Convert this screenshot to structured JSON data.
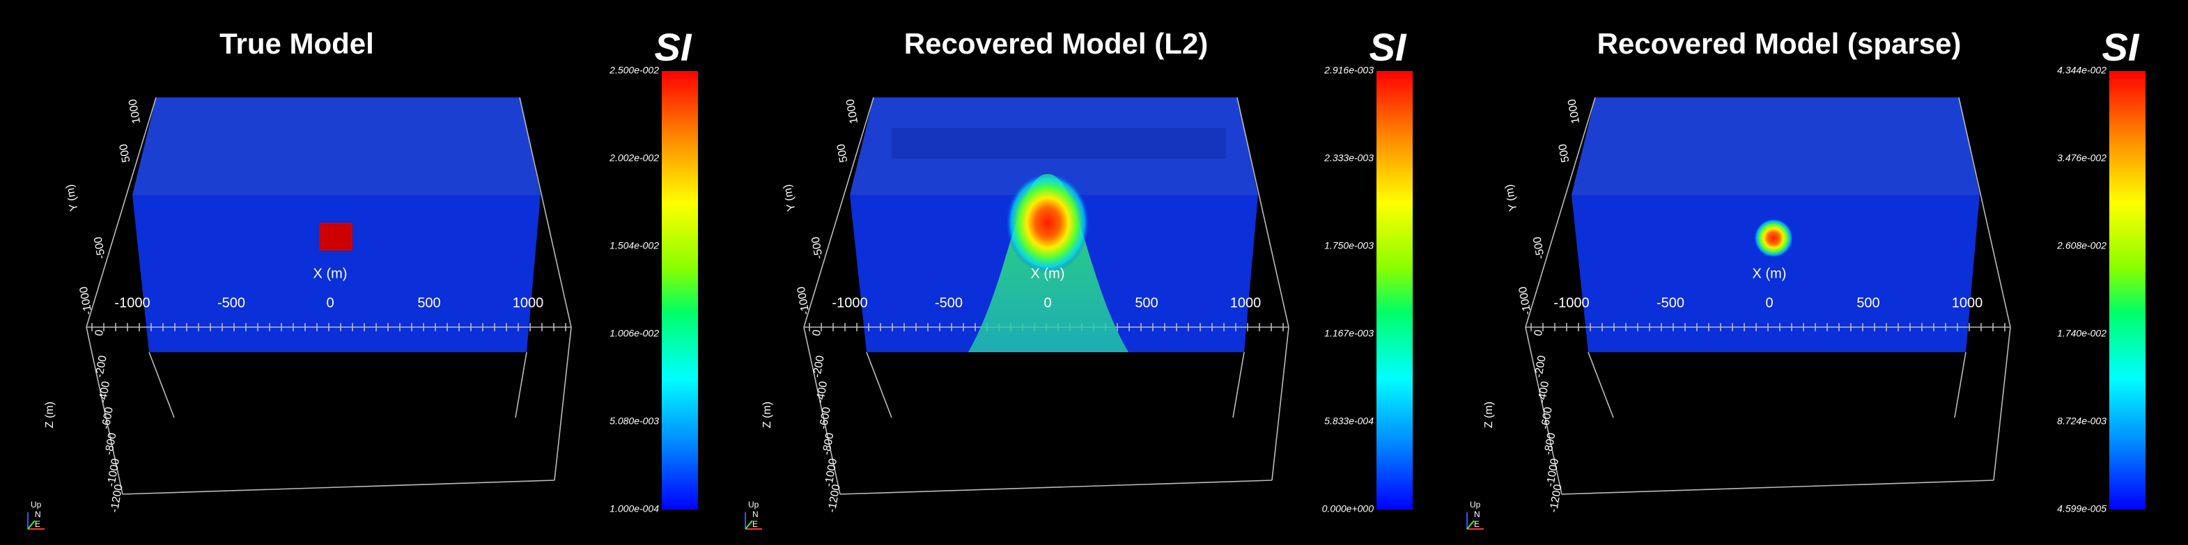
{
  "panels": [
    {
      "title": "True Model",
      "colorbar": {
        "label": "SI",
        "ticks": [
          "2.500e-002",
          "2.002e-002",
          "1.504e-002",
          "1.006e-002",
          "5.080e-003",
          "1.000e-004"
        ]
      },
      "x_axis": {
        "label": "X (m)",
        "ticks": [
          "-1000",
          "-500",
          "0",
          "500",
          "1000"
        ]
      },
      "y_axis": {
        "label": "Y (m)",
        "ticks": [
          "1000",
          "500",
          "-500",
          "-1000"
        ]
      },
      "z_axis": {
        "label": "Z (m)",
        "ticks": [
          "0",
          "-200",
          "-400",
          "-600",
          "-800",
          "-1000",
          "-1200"
        ]
      },
      "orientation": {
        "up": "Up",
        "north": "N",
        "east": "E"
      }
    },
    {
      "title": "Recovered Model (L2)",
      "colorbar": {
        "label": "SI",
        "ticks": [
          "2.916e-003",
          "2.333e-003",
          "1.750e-003",
          "1.167e-003",
          "5.833e-004",
          "0.000e+000"
        ]
      },
      "x_axis": {
        "label": "X (m)",
        "ticks": [
          "-1000",
          "-500",
          "0",
          "500",
          "1000"
        ]
      },
      "y_axis": {
        "label": "Y (m)",
        "ticks": [
          "1000",
          "500",
          "-500",
          "-1000"
        ]
      },
      "z_axis": {
        "label": "Z (m)",
        "ticks": [
          "0",
          "-200",
          "-400",
          "-600",
          "-800",
          "-1000",
          "-1200"
        ]
      },
      "orientation": {
        "up": "Up",
        "north": "N",
        "east": "E"
      }
    },
    {
      "title": "Recovered Model (sparse)",
      "colorbar": {
        "label": "SI",
        "ticks": [
          "4.344e-002",
          "3.476e-002",
          "2.608e-002",
          "1.740e-002",
          "8.724e-003",
          "4.599e-005"
        ]
      },
      "x_axis": {
        "label": "X (m)",
        "ticks": [
          "-1000",
          "-500",
          "0",
          "500",
          "1000"
        ]
      },
      "y_axis": {
        "label": "Y (m)",
        "ticks": [
          "1000",
          "500",
          "-500",
          "-1000"
        ]
      },
      "z_axis": {
        "label": "Z (m)",
        "ticks": [
          "0",
          "-200",
          "-400",
          "-600",
          "-800",
          "-1000",
          "-1200"
        ]
      },
      "orientation": {
        "up": "Up",
        "north": "N",
        "east": "E"
      }
    }
  ]
}
